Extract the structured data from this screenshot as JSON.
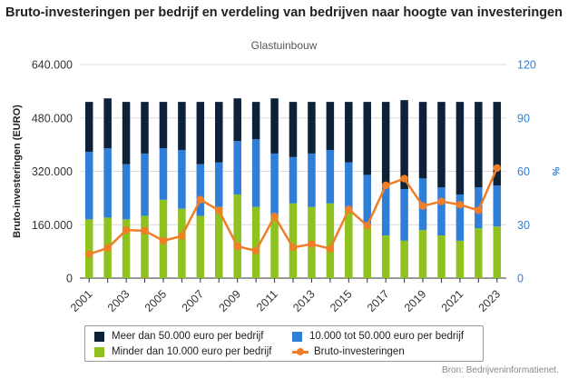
{
  "chart_data": {
    "type": "bar",
    "title": "Bruto-investeringen per bedrijf en verdeling van bedrijven naar hoogte van investeringen",
    "subtitle": "Glastuinbouw",
    "ylabel": "Bruto-investeringen (EURO)",
    "ylabel_right": "%",
    "ylim": [
      0,
      640000
    ],
    "ylim_right": [
      0,
      120
    ],
    "yticks": [
      "0",
      "160.000",
      "320.000",
      "480.000",
      "640.000"
    ],
    "yticks_right": [
      "0",
      "30",
      "60",
      "90",
      "120"
    ],
    "categories": [
      "2001",
      "2002",
      "2003",
      "2004",
      "2005",
      "2006",
      "2007",
      "2008",
      "2009",
      "2010",
      "2011",
      "2012",
      "2013",
      "2014",
      "2015",
      "2016",
      "2017",
      "2018",
      "2019",
      "2020",
      "2021",
      "2022",
      "2023"
    ],
    "xtick_labels": [
      "2001",
      "2003",
      "2005",
      "2007",
      "2009",
      "2011",
      "2013",
      "2015",
      "2017",
      "2019",
      "2021",
      "2023"
    ],
    "stacked_series_axis": "right",
    "series": [
      {
        "name": "Minder dan 10.000 euro per bedrijf",
        "color": "#8dc21f",
        "values": [
          33,
          34,
          33,
          35,
          44,
          39,
          35,
          40,
          47,
          40,
          35,
          42,
          40,
          42,
          38,
          30,
          24,
          21,
          27,
          24,
          21,
          28,
          29
        ]
      },
      {
        "name": "10.000 tot 50.000 euro per bedrijf",
        "color": "#2f7ed8",
        "values": [
          38,
          39,
          31,
          35,
          29,
          33,
          29,
          25,
          30,
          38,
          35,
          26,
          30,
          30,
          27,
          28,
          28,
          29,
          29,
          27,
          26,
          23,
          23
        ]
      },
      {
        "name": "Meer dan 50.000 euro per bedrijf",
        "color": "#0d2139",
        "values": [
          28,
          28,
          35,
          29,
          26,
          27,
          35,
          34,
          24,
          21,
          31,
          31,
          29,
          27,
          34,
          41,
          47,
          50,
          43,
          48,
          52,
          48,
          47
        ]
      }
    ],
    "line_series": {
      "name": "Bruto-investeringen",
      "color": "#f07e26",
      "axis": "left",
      "values": [
        72000,
        90000,
        144000,
        142000,
        112000,
        126000,
        235000,
        203000,
        95000,
        82000,
        185000,
        92000,
        102000,
        88000,
        206000,
        157000,
        278000,
        298000,
        216000,
        230000,
        220000,
        203000,
        330000
      ]
    },
    "legend": {
      "items": [
        {
          "label": "Meer dan 50.000 euro per bedrijf",
          "color": "#0d2139",
          "kind": "bar"
        },
        {
          "label": "10.000 tot 50.000 euro per bedrijf",
          "color": "#2f7ed8",
          "kind": "bar"
        },
        {
          "label": "Minder dan 10.000 euro per bedrijf",
          "color": "#8dc21f",
          "kind": "bar"
        },
        {
          "label": "Bruto-investeringen",
          "color": "#f07e26",
          "kind": "line"
        }
      ],
      "position": "bottom"
    },
    "grid": true,
    "source": "Bron: Bedrijveninformatienet."
  }
}
